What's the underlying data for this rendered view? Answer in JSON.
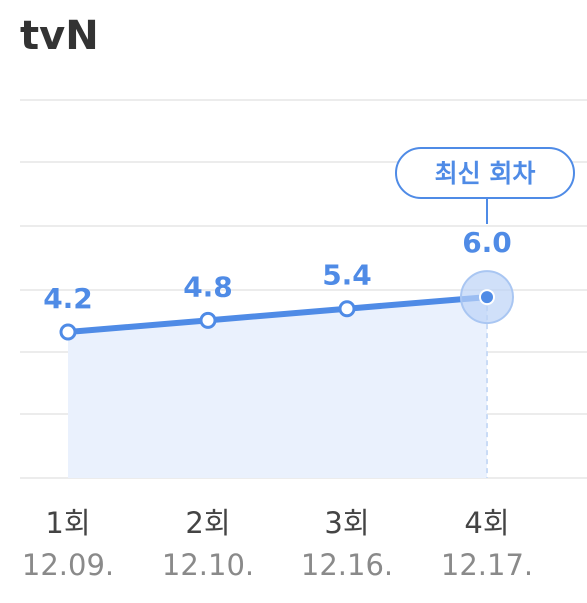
{
  "header": {
    "channel": "tvN"
  },
  "badge": {
    "label": "최신 회차"
  },
  "colors": {
    "line": "#4f8be6",
    "fill": "#eaf1fd",
    "grid": "#ececec",
    "highlight_halo": "#bcd3f6",
    "value_text": "#4f8be6"
  },
  "chart_data": {
    "type": "line",
    "x": [
      "1회",
      "2회",
      "3회",
      "4회"
    ],
    "dates": [
      "12.09.",
      "12.10.",
      "12.16.",
      "12.17."
    ],
    "values": [
      4.2,
      4.8,
      5.4,
      6.0
    ],
    "value_labels": [
      "4.2",
      "4.8",
      "5.4",
      "6.0"
    ],
    "highlight_index": 3,
    "grid": true,
    "area_fill": true
  }
}
